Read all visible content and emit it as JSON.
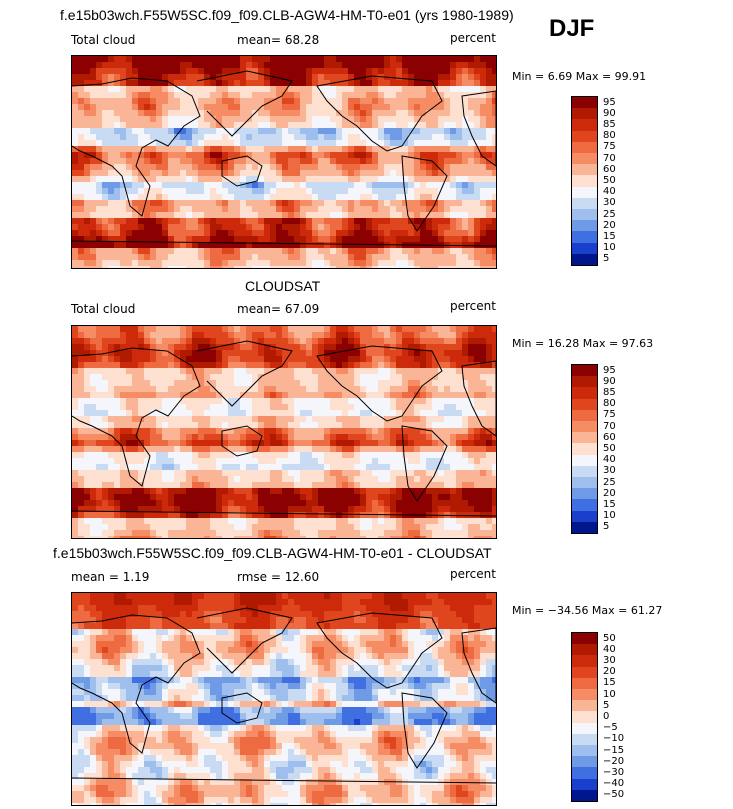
{
  "header": {
    "case_title": "f.e15b03wch.F55W5SC.f09_f09.CLB-AGW4-HM-T0-e01 (yrs 1980-1989)",
    "season": "DJF"
  },
  "panels": [
    {
      "id": "model",
      "variable": "Total cloud",
      "mean_text": "mean=  68.28",
      "units": "percent",
      "min_max": "Min =   6.69 Max =  99.91",
      "colorbar_labels": [
        "95",
        "90",
        "85",
        "80",
        "75",
        "70",
        "60",
        "50",
        "40",
        "30",
        "25",
        "20",
        "15",
        "10",
        "5"
      ]
    },
    {
      "id": "obs",
      "title": "CLOUDSAT",
      "variable": "Total cloud",
      "mean_text": "mean=  67.09",
      "units": "percent",
      "min_max": "Min =  16.28 Max =  97.63",
      "colorbar_labels": [
        "95",
        "90",
        "85",
        "80",
        "75",
        "70",
        "60",
        "50",
        "40",
        "30",
        "25",
        "20",
        "15",
        "10",
        "5"
      ]
    },
    {
      "id": "diff",
      "title": "f.e15b03wch.F55W5SC.f09_f09.CLB-AGW4-HM-T0-e01 - CLOUDSAT",
      "mean_text": "mean =   1.19",
      "rmse_text": "rmse =  12.60",
      "units": "percent",
      "min_max": "Min = −34.56 Max =  61.27",
      "colorbar_labels": [
        "50",
        "40",
        "30",
        "20",
        "15",
        "10",
        "5",
        "0",
        "−5",
        "−10",
        "−15",
        "−20",
        "−30",
        "−40",
        "−50"
      ]
    }
  ],
  "colors": {
    "scale": [
      "#8b0000",
      "#b01a00",
      "#cc2a0a",
      "#e0461e",
      "#ee6a40",
      "#f58c64",
      "#fab496",
      "#fde0cf",
      "#f4f6fb",
      "#c9dbf3",
      "#9ebfee",
      "#6f9be6",
      "#3f6fe0",
      "#1a3fcc",
      "#00168c"
    ]
  }
}
